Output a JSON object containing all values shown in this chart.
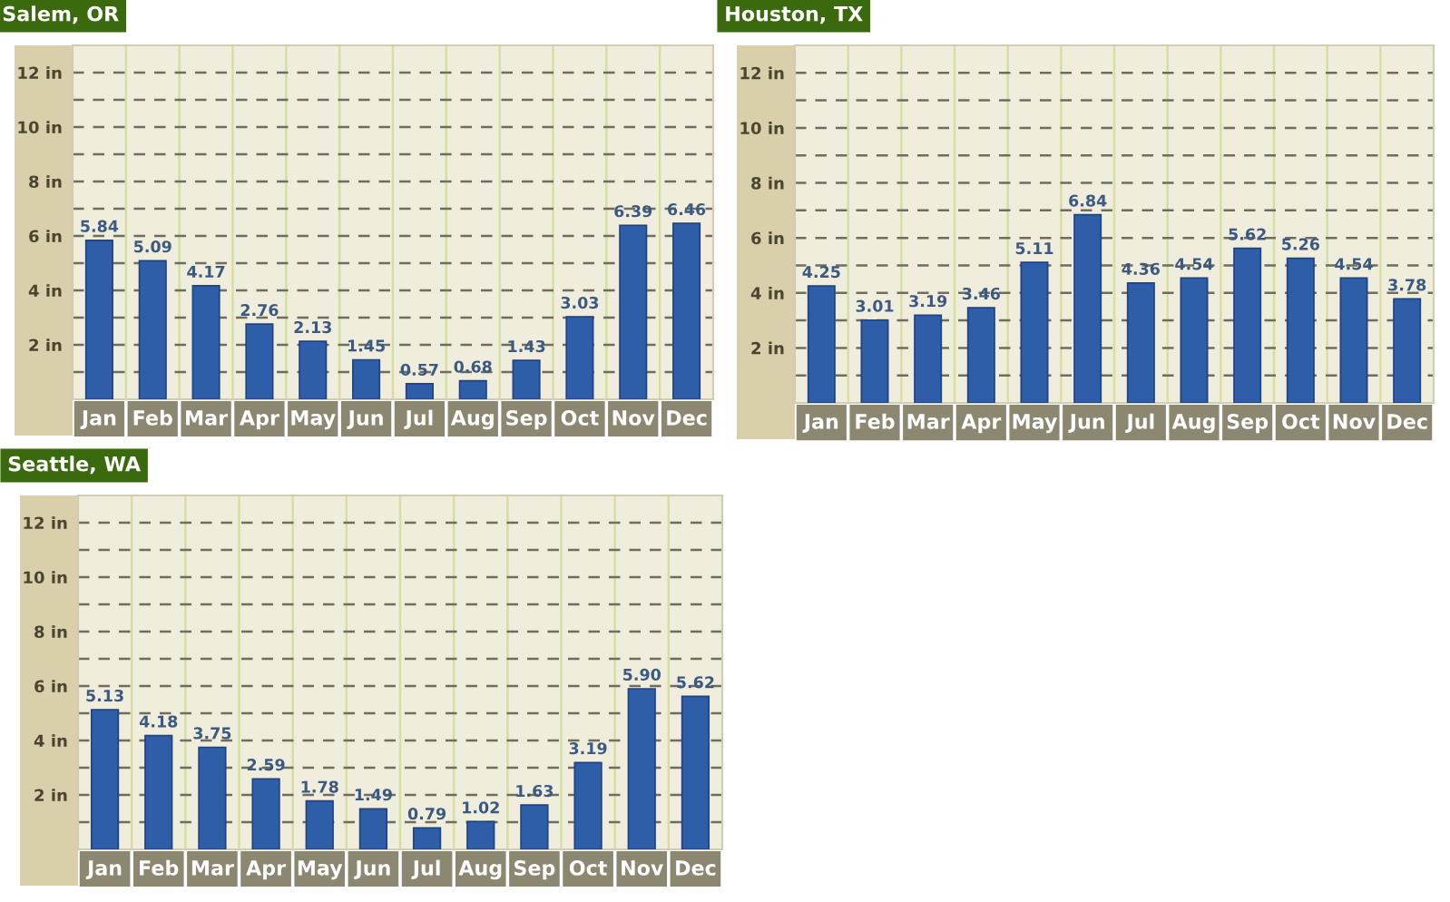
{
  "chart_data": [
    {
      "type": "bar",
      "title": "Salem, OR",
      "categories": [
        "Jan",
        "Feb",
        "Mar",
        "Apr",
        "May",
        "Jun",
        "Jul",
        "Aug",
        "Sep",
        "Oct",
        "Nov",
        "Dec"
      ],
      "values": [
        5.84,
        5.09,
        4.17,
        2.76,
        2.13,
        1.45,
        0.57,
        0.68,
        1.43,
        3.03,
        6.39,
        6.46
      ],
      "value_labels": [
        "5.84",
        "5.09",
        "4.17",
        "2.76",
        "2.13",
        "1.45",
        "0.57",
        "0.68",
        "1.43",
        "3.03",
        "6.39",
        "6.46"
      ],
      "color": "#2f5ea8",
      "ylim": [
        0,
        13
      ],
      "yticks": [
        {
          "value": 1,
          "label": null
        },
        {
          "value": 2,
          "label": "2 in"
        },
        {
          "value": 3,
          "label": null
        },
        {
          "value": 4,
          "label": "4 in"
        },
        {
          "value": 5,
          "label": null
        },
        {
          "value": 6,
          "label": "6 in"
        },
        {
          "value": 7,
          "label": null
        },
        {
          "value": 8,
          "label": "8 in"
        },
        {
          "value": 9,
          "label": null
        },
        {
          "value": 10,
          "label": "10 in"
        },
        {
          "value": 11,
          "label": null
        },
        {
          "value": 12,
          "label": "12 in"
        }
      ],
      "grid": true
    },
    {
      "type": "bar",
      "title": "Houston, TX",
      "categories": [
        "Jan",
        "Feb",
        "Mar",
        "Apr",
        "May",
        "Jun",
        "Jul",
        "Aug",
        "Sep",
        "Oct",
        "Nov",
        "Dec"
      ],
      "values": [
        4.25,
        3.01,
        3.19,
        3.46,
        5.11,
        6.84,
        4.36,
        4.54,
        5.62,
        5.26,
        4.54,
        3.78
      ],
      "value_labels": [
        "4.25",
        "3.01",
        "3.19",
        "3.46",
        "5.11",
        "6.84",
        "4.36",
        "4.54",
        "5.62",
        "5.26",
        "4.54",
        "3.78"
      ],
      "color": "#2f5ea8",
      "ylim": [
        0,
        13
      ],
      "yticks": [
        {
          "value": 1,
          "label": null
        },
        {
          "value": 2,
          "label": "2 in"
        },
        {
          "value": 3,
          "label": null
        },
        {
          "value": 4,
          "label": "4 in"
        },
        {
          "value": 5,
          "label": null
        },
        {
          "value": 6,
          "label": "6 in"
        },
        {
          "value": 7,
          "label": null
        },
        {
          "value": 8,
          "label": "8 in"
        },
        {
          "value": 9,
          "label": null
        },
        {
          "value": 10,
          "label": "10 in"
        },
        {
          "value": 11,
          "label": null
        },
        {
          "value": 12,
          "label": "12 in"
        }
      ],
      "grid": true
    },
    {
      "type": "bar",
      "title": "Seattle, WA",
      "categories": [
        "Jan",
        "Feb",
        "Mar",
        "Apr",
        "May",
        "Jun",
        "Jul",
        "Aug",
        "Sep",
        "Oct",
        "Nov",
        "Dec"
      ],
      "values": [
        5.13,
        4.18,
        3.75,
        2.59,
        1.78,
        1.49,
        0.79,
        1.02,
        1.63,
        3.19,
        5.9,
        5.62
      ],
      "value_labels": [
        "5.13",
        "4.18",
        "3.75",
        "2.59",
        "1.78",
        "1.49",
        "0.79",
        "1.02",
        "1.63",
        "3.19",
        "5.90",
        "5.62"
      ],
      "color": "#2f5ea8",
      "ylim": [
        0,
        13
      ],
      "yticks": [
        {
          "value": 1,
          "label": null
        },
        {
          "value": 2,
          "label": "2 in"
        },
        {
          "value": 3,
          "label": null
        },
        {
          "value": 4,
          "label": "4 in"
        },
        {
          "value": 5,
          "label": null
        },
        {
          "value": 6,
          "label": "6 in"
        },
        {
          "value": 7,
          "label": null
        },
        {
          "value": 8,
          "label": "8 in"
        },
        {
          "value": 9,
          "label": null
        },
        {
          "value": 10,
          "label": "10 in"
        },
        {
          "value": 11,
          "label": null
        },
        {
          "value": 12,
          "label": "12 in"
        }
      ],
      "grid": true
    }
  ]
}
